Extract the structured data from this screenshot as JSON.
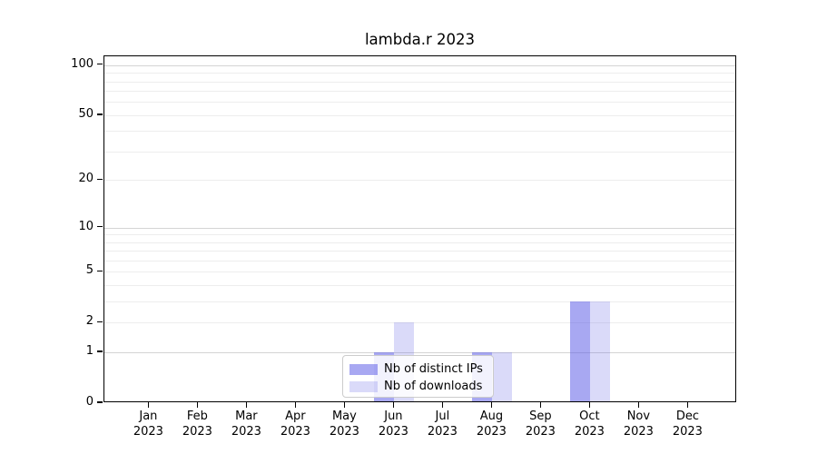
{
  "chart_data": {
    "type": "bar",
    "title": "lambda.r 2023",
    "scale": "log1p",
    "categories": [
      "Jan",
      "Feb",
      "Mar",
      "Apr",
      "May",
      "Jun",
      "Jul",
      "Aug",
      "Sep",
      "Oct",
      "Nov",
      "Dec"
    ],
    "year_label": "2023",
    "series": [
      {
        "name": "Nb of distinct IPs",
        "color": "rgba(85,85,229,0.51)",
        "values": [
          0,
          0,
          0,
          0,
          0,
          1,
          0,
          1,
          0,
          3,
          0,
          0
        ]
      },
      {
        "name": "Nb of downloads",
        "color": "rgba(85,85,229,0.22)",
        "values": [
          0,
          0,
          0,
          0,
          0,
          2,
          0,
          1,
          0,
          3,
          0,
          0
        ]
      }
    ],
    "yticks": [
      0,
      1,
      2,
      5,
      10,
      20,
      50,
      100
    ],
    "ylim": [
      0,
      100
    ],
    "grid": {
      "major_lines": [
        1,
        10,
        100
      ],
      "minor_lines": [
        2,
        3,
        4,
        5,
        6,
        7,
        8,
        9,
        20,
        30,
        40,
        50,
        60,
        70,
        80,
        90
      ]
    },
    "legend_position": "bottom-center",
    "colors": {
      "major_grid": "#d4d4d4",
      "minor_grid": "#ededed",
      "axis": "#000000"
    }
  }
}
